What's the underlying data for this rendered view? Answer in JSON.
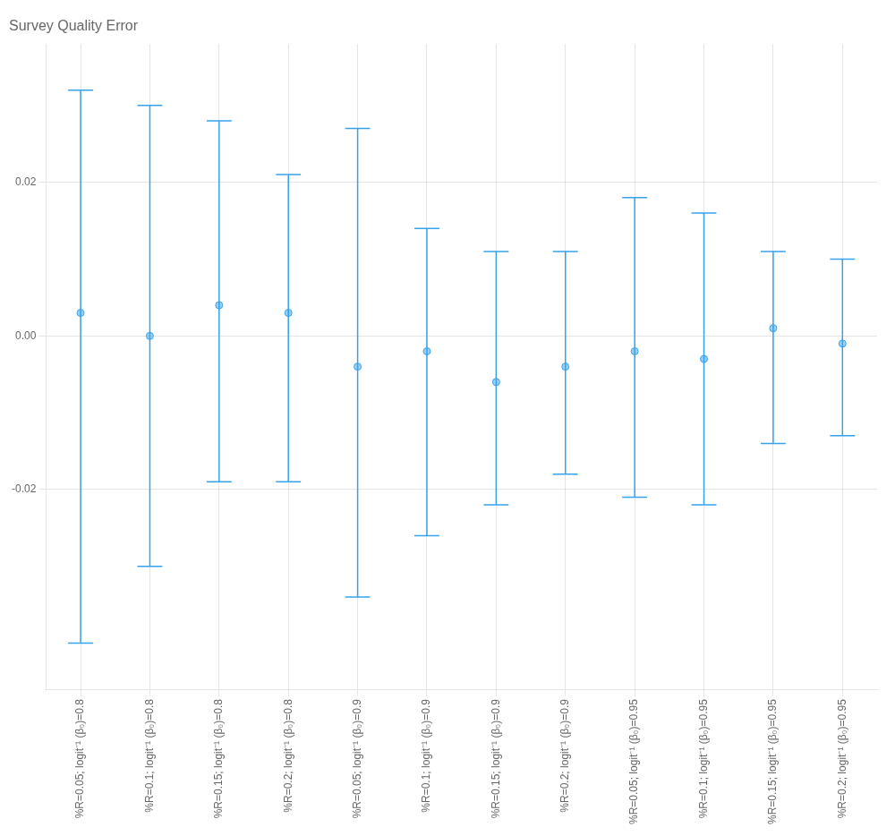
{
  "chart_data": {
    "type": "errorbar",
    "title": "Survey Quality Error",
    "categories": [
      "%R=0.05; logit⁻¹ (β₀)=0.8",
      "%R=0.1; logit⁻¹ (β₀)=0.8",
      "%R=0.15; logit⁻¹ (β₀)=0.8",
      "%R=0.2; logit⁻¹ (β₀)=0.8",
      "%R=0.05; logit⁻¹ (β₀)=0.9",
      "%R=0.1; logit⁻¹ (β₀)=0.9",
      "%R=0.15; logit⁻¹ (β₀)=0.9",
      "%R=0.2; logit⁻¹ (β₀)=0.9",
      "%R=0.05; logit⁻¹ (β₀)=0.95",
      "%R=0.1; logit⁻¹ (β₀)=0.95",
      "%R=0.15; logit⁻¹ (β₀)=0.95",
      "%R=0.2; logit⁻¹ (β₀)=0.95"
    ],
    "values": [
      0.003,
      0.0,
      0.004,
      0.003,
      -0.004,
      -0.002,
      -0.006,
      -0.004,
      -0.002,
      -0.003,
      0.001,
      -0.001
    ],
    "upper": [
      0.032,
      0.03,
      0.028,
      0.021,
      0.027,
      0.014,
      0.011,
      0.011,
      0.018,
      0.016,
      0.011,
      0.01
    ],
    "lower": [
      -0.04,
      -0.03,
      -0.019,
      -0.019,
      -0.034,
      -0.026,
      -0.022,
      -0.018,
      -0.021,
      -0.022,
      -0.014,
      -0.013
    ],
    "ylim": [
      -0.046,
      0.038
    ],
    "yticks": [
      -0.02,
      {
        "value": 0,
        "label": "0.00"
      },
      0.02
    ],
    "grid": true
  }
}
